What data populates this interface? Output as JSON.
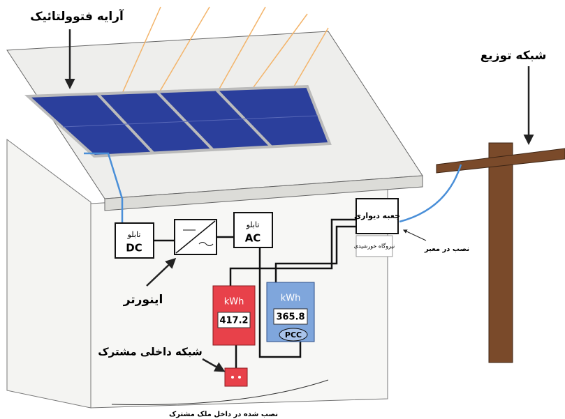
{
  "labels": {
    "pv_array": "آرایه فتوولتائیک",
    "distribution_grid": "شبکه توزیع",
    "inverter": "اینورتر",
    "customer_network": "شبکه داخلی مشترک",
    "installed_inside": "نصب شده در داخل ملک مشترک",
    "installed_street": "نصب در معبر"
  },
  "boxes": {
    "dc": {
      "title": "تابلو",
      "label": "DC"
    },
    "ac": {
      "title": "تابلو",
      "label": "AC"
    },
    "wall_box": {
      "title": "جعبه دیواری",
      "note": "نیروگاه خورشیدی"
    }
  },
  "meters": [
    {
      "unit": "kWh",
      "reading": "417.2"
    },
    {
      "unit": "kWh",
      "reading": "365.8",
      "tag": "PCC"
    }
  ]
}
